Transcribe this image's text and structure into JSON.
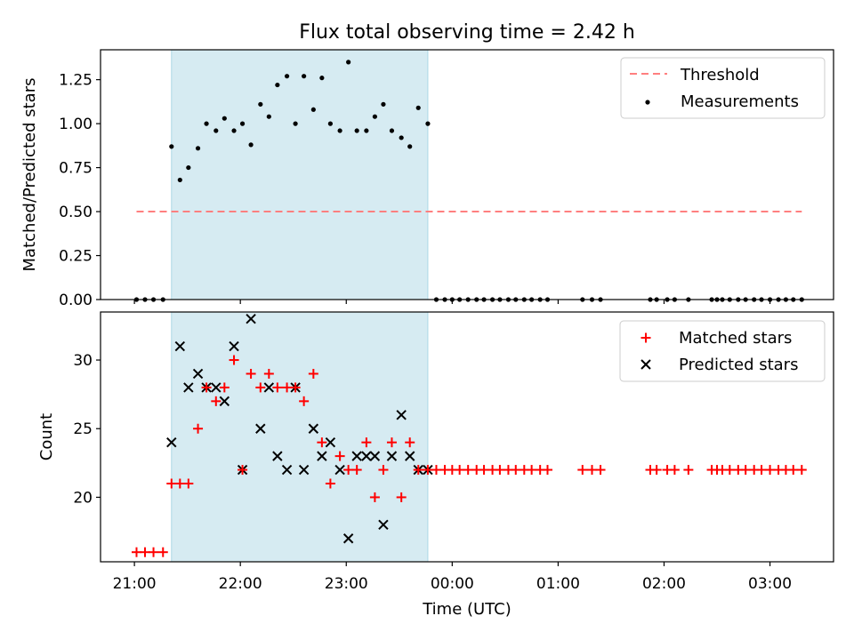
{
  "chart_data": {
    "title": "Flux total observing time = 2.42 h",
    "shared_x": {
      "label": "Time (UTC)",
      "unit": "hours since 21:00 UTC (24:00 = 00:00 next day)",
      "xlim": [
        20.68,
        27.6
      ],
      "ticks": [
        21,
        22,
        23,
        24,
        25,
        26,
        27
      ],
      "tick_labels": [
        "21:00",
        "22:00",
        "23:00",
        "00:00",
        "01:00",
        "02:00",
        "03:00"
      ]
    },
    "shaded_interval": [
      21.35,
      23.77
    ],
    "panels": [
      {
        "type": "scatter",
        "ylabel": "Matched/Predicted stars",
        "ylim": [
          0,
          1.42
        ],
        "yticks": [
          0,
          0.25,
          0.5,
          0.75,
          1.0,
          1.25
        ],
        "ytick_labels": [
          "0.00",
          "0.25",
          "0.50",
          "0.75",
          "1.00",
          "1.25"
        ],
        "legend": {
          "placement": "top-right",
          "entries": [
            "Threshold",
            "Measurements"
          ]
        },
        "threshold": {
          "name": "Threshold",
          "y": 0.5,
          "x_range": [
            21.02,
            27.3
          ],
          "color": "#ff7f7f"
        },
        "measurements": {
          "name": "Measurements",
          "color": "#000000",
          "x": [
            21.02,
            21.1,
            21.18,
            21.27,
            21.35,
            21.43,
            21.51,
            21.6,
            21.68,
            21.77,
            21.85,
            21.94,
            22.02,
            22.1,
            22.19,
            22.27,
            22.35,
            22.44,
            22.52,
            22.6,
            22.69,
            22.77,
            22.85,
            22.94,
            23.02,
            23.1,
            23.19,
            23.27,
            23.35,
            23.43,
            23.52,
            23.6,
            23.68,
            23.77,
            23.85,
            23.93,
            24.0,
            24.07,
            24.15,
            24.23,
            24.3,
            24.38,
            24.45,
            24.53,
            24.6,
            24.68,
            24.75,
            24.83,
            24.9,
            25.23,
            25.32,
            25.4,
            25.87,
            25.93,
            26.03,
            26.1,
            26.23,
            26.45,
            26.5,
            26.55,
            26.62,
            26.7,
            26.77,
            26.85,
            26.92,
            27.0,
            27.08,
            27.15,
            27.22,
            27.3
          ],
          "y": [
            0,
            0,
            0,
            0,
            0.87,
            0.68,
            0.75,
            0.86,
            1.0,
            0.96,
            1.03,
            0.96,
            1.0,
            0.88,
            1.11,
            1.04,
            1.22,
            1.27,
            1.0,
            1.27,
            1.08,
            1.26,
            1.0,
            0.96,
            1.35,
            0.96,
            0.96,
            1.04,
            1.11,
            0.96,
            0.92,
            0.87,
            1.09,
            1.0,
            0,
            0,
            0,
            0,
            0,
            0,
            0,
            0,
            0,
            0,
            0,
            0,
            0,
            0,
            0,
            0,
            0,
            0,
            0,
            0,
            0,
            0,
            0,
            0,
            0,
            0,
            0,
            0,
            0,
            0,
            0,
            0,
            0,
            0,
            0,
            0
          ]
        }
      },
      {
        "type": "scatter",
        "ylabel": "Count",
        "ylim": [
          15.3,
          33.5
        ],
        "yticks": [
          20,
          25,
          30
        ],
        "ytick_labels": [
          "20",
          "25",
          "30"
        ],
        "legend": {
          "placement": "top-right",
          "entries": [
            "Matched stars",
            "Predicted stars"
          ]
        },
        "series": [
          {
            "name": "Matched stars",
            "marker": "+",
            "color": "#ff0000",
            "x": [
              21.02,
              21.1,
              21.18,
              21.27,
              21.35,
              21.43,
              21.51,
              21.6,
              21.68,
              21.77,
              21.85,
              21.94,
              22.02,
              22.1,
              22.19,
              22.27,
              22.35,
              22.44,
              22.52,
              22.6,
              22.69,
              22.77,
              22.85,
              22.94,
              23.02,
              23.1,
              23.19,
              23.27,
              23.35,
              23.43,
              23.52,
              23.6,
              23.68,
              23.77,
              23.85,
              23.93,
              24.0,
              24.07,
              24.15,
              24.23,
              24.3,
              24.38,
              24.45,
              24.53,
              24.6,
              24.68,
              24.75,
              24.83,
              24.9,
              25.23,
              25.32,
              25.4,
              25.87,
              25.93,
              26.03,
              26.1,
              26.23,
              26.45,
              26.5,
              26.55,
              26.62,
              26.7,
              26.77,
              26.85,
              26.92,
              27.0,
              27.08,
              27.15,
              27.22,
              27.3
            ],
            "y": [
              16,
              16,
              16,
              16,
              21,
              21,
              21,
              25,
              28,
              27,
              28,
              30,
              22,
              29,
              28,
              29,
              28,
              28,
              28,
              27,
              29,
              24,
              21,
              23,
              22,
              22,
              24,
              20,
              22,
              24,
              20,
              24,
              22,
              22,
              22,
              22,
              22,
              22,
              22,
              22,
              22,
              22,
              22,
              22,
              22,
              22,
              22,
              22,
              22,
              22,
              22,
              22,
              22,
              22,
              22,
              22,
              22,
              22,
              22,
              22,
              22,
              22,
              22,
              22,
              22,
              22,
              22,
              22,
              22,
              22
            ]
          },
          {
            "name": "Predicted stars",
            "marker": "x",
            "color": "#000000",
            "x": [
              21.35,
              21.43,
              21.51,
              21.6,
              21.68,
              21.77,
              21.85,
              21.94,
              22.02,
              22.1,
              22.19,
              22.27,
              22.35,
              22.44,
              22.52,
              22.6,
              22.69,
              22.77,
              22.85,
              22.94,
              23.02,
              23.1,
              23.19,
              23.27,
              23.35,
              23.43,
              23.52,
              23.6,
              23.68,
              23.77
            ],
            "y": [
              24,
              31,
              28,
              29,
              28,
              28,
              27,
              31,
              22,
              33,
              25,
              28,
              23,
              22,
              28,
              22,
              25,
              23,
              24,
              22,
              17,
              23,
              23,
              23,
              18,
              23,
              26,
              23,
              22,
              22
            ]
          }
        ]
      }
    ]
  }
}
